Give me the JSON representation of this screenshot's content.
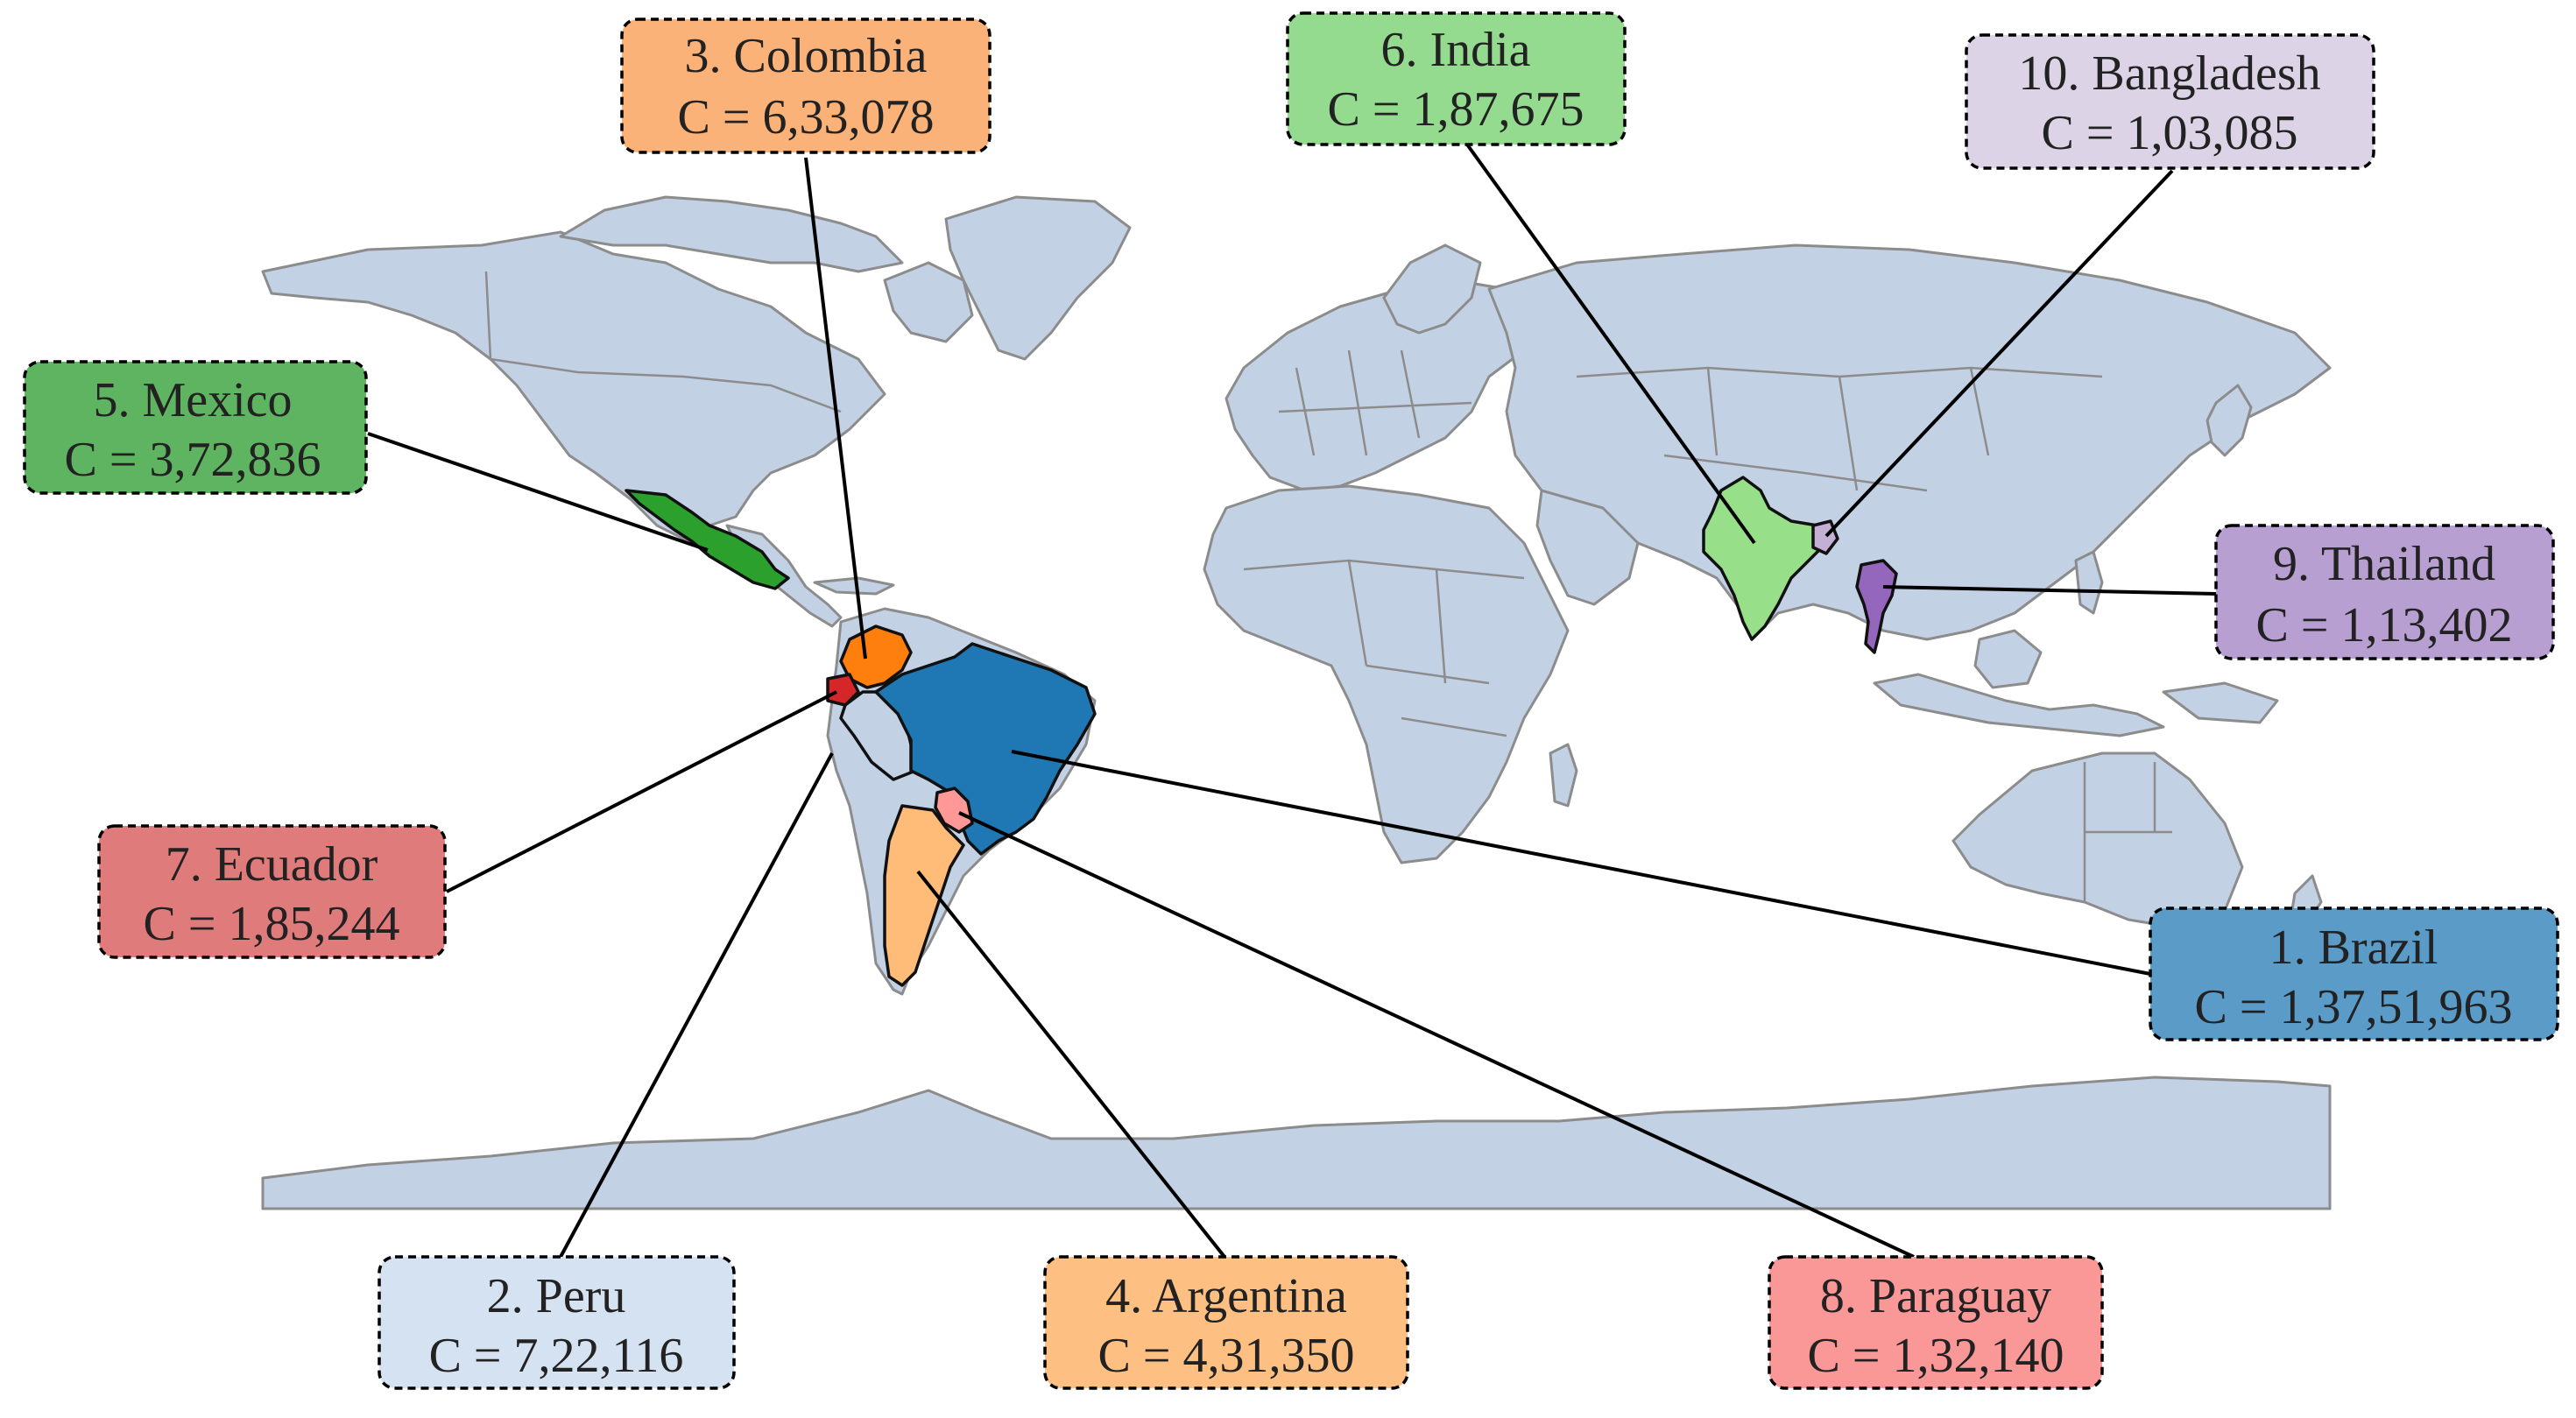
{
  "colors": {
    "land": "#c3d1e5",
    "border": "#8c8c8c",
    "background": "#ffffff"
  },
  "labels": [
    {
      "id": "brazil",
      "rank_name": "1. Brazil",
      "value_text": "C = 1,37,51,963",
      "fill": "#5a9bc8"
    },
    {
      "id": "peru",
      "rank_name": "2. Peru",
      "value_text": "C = 7,22,116",
      "fill": "#d5e2f1"
    },
    {
      "id": "colombia",
      "rank_name": "3. Colombia",
      "value_text": "C = 6,33,078",
      "fill": "#fbb278"
    },
    {
      "id": "argentina",
      "rank_name": "4. Argentina",
      "value_text": "C = 4,31,350",
      "fill": "#fdc082"
    },
    {
      "id": "mexico",
      "rank_name": "5. Mexico",
      "value_text": "C = 3,72,836",
      "fill": "#5fb461"
    },
    {
      "id": "india",
      "rank_name": "6. India",
      "value_text": "C = 1,87,675",
      "fill": "#95db8f"
    },
    {
      "id": "ecuador",
      "rank_name": "7. Ecuador",
      "value_text": "C = 1,85,244",
      "fill": "#e07b7b"
    },
    {
      "id": "paraguay",
      "rank_name": "8. Paraguay",
      "value_text": "C = 1,32,140",
      "fill": "#fa9797"
    },
    {
      "id": "thailand",
      "rank_name": "9. Thailand",
      "value_text": "C = 1,13,402",
      "fill": "#b79fd2"
    },
    {
      "id": "bangladesh",
      "rank_name": "10. Bangladesh",
      "value_text": "C = 1,03,085",
      "fill": "#dcd4e6"
    }
  ],
  "highlighted_countries": [
    {
      "id": "brazil",
      "fill": "#1f77b4"
    },
    {
      "id": "peru",
      "fill": "#c3d1e5"
    },
    {
      "id": "colombia",
      "fill": "#ff7f0e"
    },
    {
      "id": "argentina",
      "fill": "#ffbb78"
    },
    {
      "id": "mexico",
      "fill": "#2ca02c"
    },
    {
      "id": "india",
      "fill": "#98df8a"
    },
    {
      "id": "ecuador",
      "fill": "#d62728"
    },
    {
      "id": "paraguay",
      "fill": "#ff9896"
    },
    {
      "id": "thailand",
      "fill": "#9467bd"
    },
    {
      "id": "bangladesh",
      "fill": "#c5b0d5"
    }
  ]
}
